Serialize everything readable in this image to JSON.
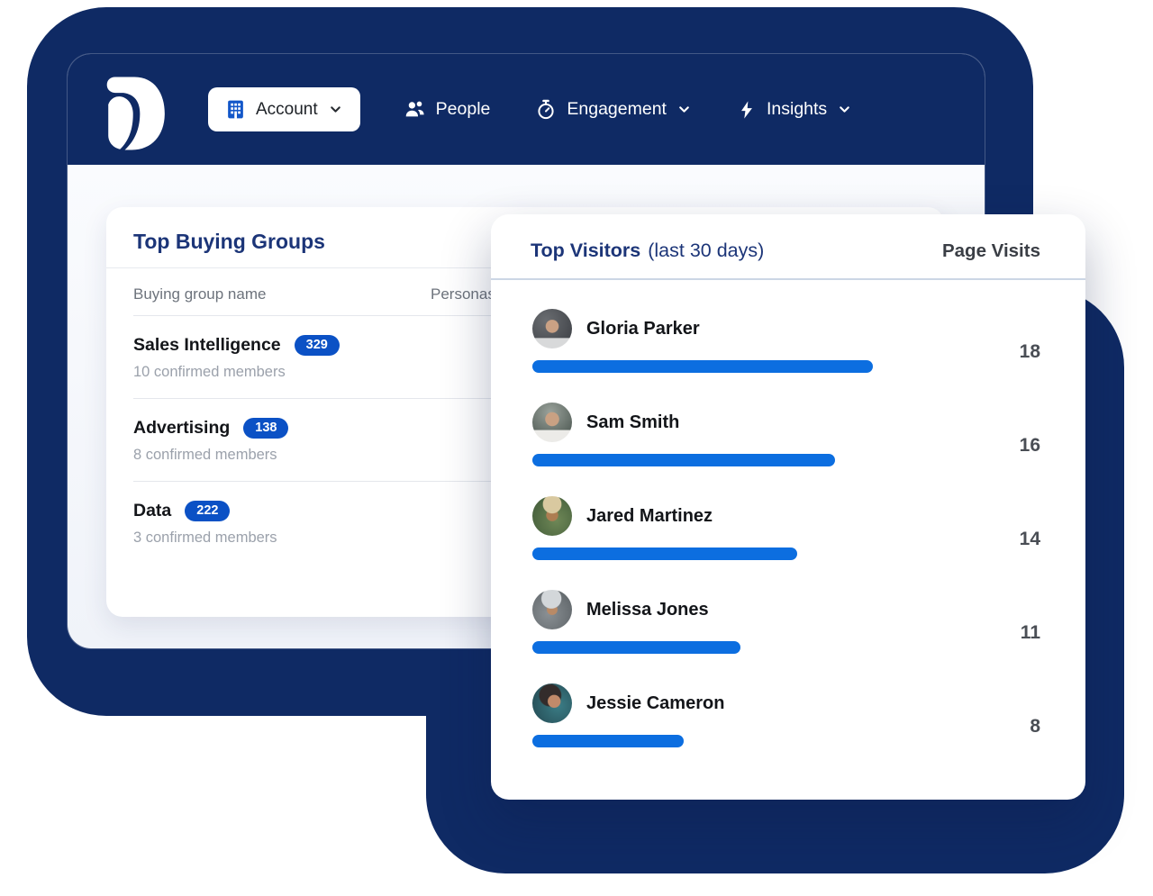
{
  "colors": {
    "navy_background": "#0F2A64",
    "title_navy": "#1C3578",
    "badge_blue": "#0B51C5",
    "bar_blue": "#0C6EE0",
    "window_background": "#f3f5fa",
    "card_white": "#ffffff"
  },
  "header": {
    "logo": "D-logo",
    "account_button": {
      "label": "Account",
      "icon": "building-icon",
      "chevron": "chevron-down-icon"
    },
    "nav": [
      {
        "label": "People",
        "icon": "people-icon"
      },
      {
        "label": "Engagement",
        "icon": "stopwatch-icon",
        "chevron": "chevron-down-icon"
      },
      {
        "label": "Insights",
        "icon": "lightning-icon",
        "chevron": "chevron-down-icon"
      }
    ]
  },
  "buying_groups": {
    "title": "Top Buying Groups",
    "columns": {
      "name": "Buying group name",
      "personas": "Personas"
    },
    "rows": [
      {
        "name": "Sales Intelligence",
        "badge": "329",
        "members": "10 confirmed members"
      },
      {
        "name": "Advertising",
        "badge": "138",
        "members": "8 confirmed members"
      },
      {
        "name": "Data",
        "badge": "222",
        "members": "3 confirmed members"
      }
    ]
  },
  "top_visitors": {
    "title": "Top Visitors",
    "subtitle": "(last 30 days)",
    "column": "Page Visits",
    "visitors": [
      {
        "name": "Gloria Parker",
        "visits": 18
      },
      {
        "name": "Sam Smith",
        "visits": 16
      },
      {
        "name": "Jared Martinez",
        "visits": 14
      },
      {
        "name": "Melissa Jones",
        "visits": 11
      },
      {
        "name": "Jessie Cameron",
        "visits": 8
      }
    ]
  },
  "chart_data": {
    "type": "bar",
    "orientation": "horizontal",
    "title": "Top Visitors (last 30 days)",
    "categories": [
      "Gloria Parker",
      "Sam Smith",
      "Jared Martinez",
      "Melissa Jones",
      "Jessie Cameron"
    ],
    "values": [
      18,
      16,
      14,
      11,
      8
    ],
    "value_label": "Page Visits",
    "xlim": [
      0,
      18
    ],
    "bar_color": "#0C6EE0",
    "grid": false,
    "legend": false
  }
}
